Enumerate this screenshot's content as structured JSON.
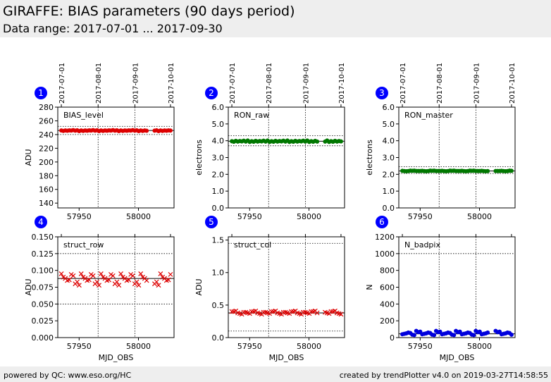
{
  "header": {
    "title": "GIRAFFE: BIAS parameters (90 days period)",
    "subtitle": "Data range: 2017-07-01 ... 2017-09-30"
  },
  "footer": {
    "left": "powered by QC: www.eso.org/HC",
    "right": "created by trendPlotter v4.0 on 2019-03-27T14:58:55"
  },
  "colors": {
    "red": "#dd0000",
    "green": "#007700",
    "blue": "#0000dd",
    "marker_badge": "#0000ff"
  },
  "top_date_ticks": [
    {
      "label": "2017-07-01",
      "mjd": 57935
    },
    {
      "label": "2017-08-01",
      "mjd": 57966
    },
    {
      "label": "2017-09-01",
      "mjd": 57997
    },
    {
      "label": "2017-10-01",
      "mjd": 58027
    }
  ],
  "chart_data": [
    {
      "id": 1,
      "badge": "1",
      "type": "scatter",
      "label": "BIAS_level",
      "xlabel": "",
      "ylabel": "ADU",
      "xlim": [
        57932,
        58030
      ],
      "ylim": [
        133,
        280
      ],
      "yticks": [
        "140",
        "160",
        "180",
        "200",
        "220",
        "240",
        "260",
        "280"
      ],
      "ytick_values": [
        140,
        160,
        180,
        200,
        220,
        240,
        260,
        280
      ],
      "xticks": [
        "57950",
        "58000"
      ],
      "xtick_values": [
        57950,
        58000
      ],
      "marker": "circle",
      "color": "red",
      "hlines": [
        246,
        240,
        252
      ],
      "x_start": 57935,
      "x_end": 58027,
      "y_values": [
        246,
        245.5,
        246.5,
        245,
        246,
        245.8,
        246.2,
        245.3,
        246.1,
        245.7
      ],
      "gaps": [
        [
          58008,
          58013
        ]
      ]
    },
    {
      "id": 2,
      "badge": "2",
      "type": "scatter",
      "label": "RON_raw",
      "xlabel": "",
      "ylabel": "electrons",
      "xlim": [
        57932,
        58030
      ],
      "ylim": [
        0,
        6.0
      ],
      "yticks": [
        "0.0",
        "1.0",
        "2.0",
        "3.0",
        "4.0",
        "5.0",
        "6.0"
      ],
      "ytick_values": [
        0,
        1,
        2,
        3,
        4,
        5,
        6
      ],
      "xticks": [
        "57950",
        "58000"
      ],
      "xtick_values": [
        57950,
        58000
      ],
      "marker": "circle",
      "color": "green",
      "hlines": [
        3.97,
        3.7,
        4.3
      ],
      "x_start": 57935,
      "x_end": 58027,
      "y_values": [
        3.97,
        3.95,
        4.0,
        3.93,
        3.99,
        3.96,
        4.01,
        3.94,
        3.98,
        3.95
      ],
      "gaps": [
        [
          58008,
          58013
        ]
      ]
    },
    {
      "id": 3,
      "badge": "3",
      "type": "scatter",
      "label": "RON_master",
      "xlabel": "",
      "ylabel": "electrons",
      "xlim": [
        57932,
        58030
      ],
      "ylim": [
        0,
        6.0
      ],
      "yticks": [
        "0.0",
        "1.0",
        "2.0",
        "3.0",
        "4.0",
        "5.0",
        "6.0"
      ],
      "ytick_values": [
        0,
        1,
        2,
        3,
        4,
        5,
        6
      ],
      "xticks": [
        "57950",
        "58000"
      ],
      "xtick_values": [
        57950,
        58000
      ],
      "marker": "circle",
      "color": "green",
      "hlines": [
        2.2,
        2.05,
        2.45
      ],
      "x_start": 57935,
      "x_end": 58027,
      "y_values": [
        2.21,
        2.19,
        2.22,
        2.2,
        2.18,
        2.21,
        2.2,
        2.19,
        2.22,
        2.2
      ],
      "gaps": [
        [
          58008,
          58013
        ]
      ]
    },
    {
      "id": 4,
      "badge": "4",
      "type": "scatter",
      "label": "struct_row",
      "xlabel": "MJD_OBS",
      "ylabel": "ADU",
      "xlim": [
        57932,
        58030
      ],
      "ylim": [
        0,
        0.15
      ],
      "yticks": [
        "0.000",
        "0.025",
        "0.050",
        "0.075",
        "0.100",
        "0.125",
        "0.150"
      ],
      "ytick_values": [
        0,
        0.025,
        0.05,
        0.075,
        0.1,
        0.125,
        0.15
      ],
      "xticks": [
        "57950",
        "58000"
      ],
      "xtick_values": [
        57950,
        58000
      ],
      "marker": "x",
      "color": "red",
      "hlines": [
        0.088,
        0.05,
        0.125
      ],
      "x_start": 57935,
      "x_end": 58027,
      "y_values": [
        0.095,
        0.085,
        0.092,
        0.078,
        0.088,
        0.094,
        0.083,
        0.09,
        0.086,
        0.08
      ],
      "gaps": [
        [
          58008,
          58013
        ]
      ]
    },
    {
      "id": 5,
      "badge": "5",
      "type": "scatter",
      "label": "struct_col",
      "xlabel": "MJD_OBS",
      "ylabel": "ADU",
      "xlim": [
        57932,
        58030
      ],
      "ylim": [
        0,
        1.55
      ],
      "yticks": [
        "0.0",
        "0.5",
        "1.0",
        "1.5"
      ],
      "ytick_values": [
        0,
        0.5,
        1.0,
        1.5
      ],
      "xticks": [
        "57950",
        "58000"
      ],
      "xtick_values": [
        57950,
        58000
      ],
      "marker": "x",
      "color": "red",
      "hlines": [
        0.38,
        0.1,
        1.45
      ],
      "x_start": 57935,
      "x_end": 58027,
      "y_values": [
        0.4,
        0.38,
        0.39,
        0.37,
        0.41,
        0.36,
        0.38,
        0.4,
        0.37,
        0.39
      ],
      "gaps": [
        [
          58008,
          58013
        ]
      ]
    },
    {
      "id": 6,
      "badge": "6",
      "type": "scatter",
      "label": "N_badpix",
      "xlabel": "MJD_OBS",
      "ylabel": "N",
      "xlim": [
        57932,
        58030
      ],
      "ylim": [
        0,
        1200
      ],
      "yticks": [
        "0",
        "200",
        "400",
        "600",
        "800",
        "1000",
        "1200"
      ],
      "ytick_values": [
        0,
        200,
        400,
        600,
        800,
        1000,
        1200
      ],
      "xticks": [
        "57950",
        "58000"
      ],
      "xtick_values": [
        57950,
        58000
      ],
      "marker": "circle",
      "color": "blue",
      "hlines": [
        45,
        1000
      ],
      "x_start": 57935,
      "x_end": 58027,
      "y_values": [
        40,
        60,
        30,
        70,
        50,
        35,
        65,
        45,
        55,
        80
      ],
      "gaps": [
        [
          58008,
          58013
        ]
      ]
    }
  ]
}
